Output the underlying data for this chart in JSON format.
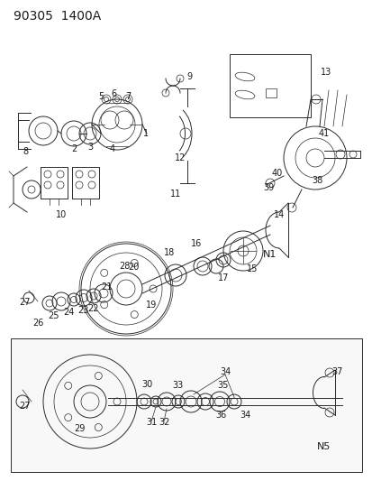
{
  "title": "90305  1400A",
  "bg_color": "#ffffff",
  "line_color": "#2a2a2a",
  "text_color": "#1a1a1a",
  "title_fontsize": 10,
  "label_fontsize": 7,
  "fig_width": 4.14,
  "fig_height": 5.33,
  "dpi": 100
}
